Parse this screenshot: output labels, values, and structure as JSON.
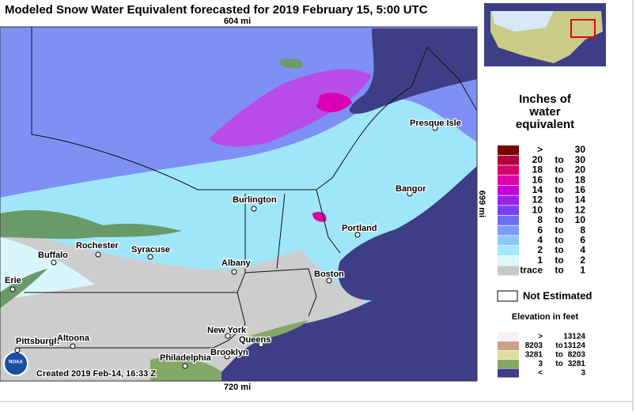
{
  "header": {
    "title": "Modeled Snow Water Equivalent forecasted for 2019 February 15, 5:00 UTC"
  },
  "map": {
    "scale_top": "604 mi",
    "scale_bottom": "720 mi",
    "scale_right": "699 mi",
    "credit": "Created 2019 Feb-14, 16:33 Z",
    "logo": "NOAA",
    "cities": [
      "Presque Isle",
      "Bangor",
      "Burlington",
      "Portland",
      "Rochester",
      "Syracuse",
      "Buffalo",
      "Albany",
      "Boston",
      "Erie",
      "New York",
      "Queens",
      "Pittsburgh",
      "Altoona",
      "Philadelphia",
      "Brooklyn"
    ]
  },
  "legend": {
    "title": [
      "Inches of",
      "water",
      "equivalent"
    ],
    "connector": "to",
    "rows": [
      {
        "color": "#7a0000",
        "from": ">",
        "to": "30"
      },
      {
        "color": "#b0003c",
        "from": "20",
        "to": "30"
      },
      {
        "color": "#d4006e",
        "from": "18",
        "to": "20"
      },
      {
        "color": "#e000aa",
        "from": "16",
        "to": "18"
      },
      {
        "color": "#c400d8",
        "from": "14",
        "to": "16"
      },
      {
        "color": "#9a22e8",
        "from": "12",
        "to": "14"
      },
      {
        "color": "#7a40f2",
        "from": "10",
        "to": "12"
      },
      {
        "color": "#6c70f5",
        "from": "8",
        "to": "10"
      },
      {
        "color": "#7c9cf8",
        "from": "6",
        "to": "8"
      },
      {
        "color": "#8cc8fb",
        "from": "4",
        "to": "6"
      },
      {
        "color": "#a0eafc",
        "from": "2",
        "to": "4"
      },
      {
        "color": "#d8f8fc",
        "from": "1",
        "to": "2"
      },
      {
        "color": "#c8c8c8",
        "from": "trace",
        "to": "1"
      }
    ],
    "not_estimated": "Not Estimated",
    "elevation_title": "Elevation in feet",
    "elevation_rows": [
      {
        "color": "#f8eef8",
        "from": ">",
        "to": "13124"
      },
      {
        "color": "#c8a08a",
        "from": "8203",
        "to": "13124"
      },
      {
        "color": "#e2dca0",
        "from": "3281",
        "to": "8203"
      },
      {
        "color": "#86a866",
        "from": "3",
        "to": "3281"
      },
      {
        "color": "#3e3e86",
        "from": "<",
        "to": "3"
      }
    ]
  }
}
